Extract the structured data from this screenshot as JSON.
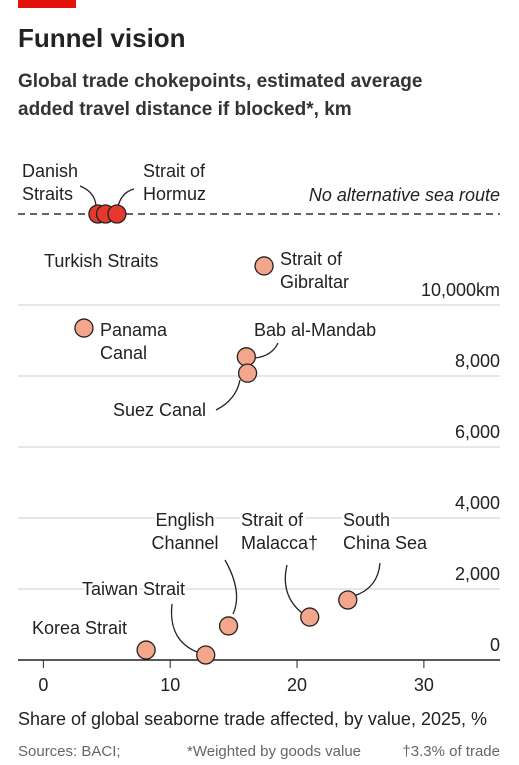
{
  "chart_data": {
    "type": "scatter",
    "title": "Funnel vision",
    "subtitle": [
      "Global trade chokepoints, estimated average",
      "added travel distance if blocked*, km"
    ],
    "xlabel": "Share of global seaborne trade affected, by value, 2025, %",
    "annotation": "No alternative sea route",
    "footnotes": [
      "Sources: BACI;",
      "*Weighted by goods value",
      "†3.3% of trade"
    ],
    "xlim": [
      -2,
      36
    ],
    "xticks": [
      0,
      10,
      20,
      30
    ],
    "ylim": [
      0,
      14000
    ],
    "yticks": [
      0,
      {
        "value": 2000,
        "label": "2,000"
      },
      {
        "value": 4000,
        "label": "4,000"
      },
      {
        "value": 6000,
        "label": "6,000"
      },
      {
        "value": 8000,
        "label": "8,000"
      },
      {
        "value": 10000,
        "label": "10,000km"
      }
    ],
    "grid": true,
    "point_color": "#f4a68c",
    "no_route_color": "#e4392c",
    "points": [
      {
        "label": [
          "Danish",
          "Straits"
        ],
        "x": 4.3,
        "y": null
      },
      {
        "label": [
          "Turkish Straits"
        ],
        "x": 4.9,
        "y": null
      },
      {
        "label": [
          "Strait of",
          "Hormuz"
        ],
        "x": 5.8,
        "y": null
      },
      {
        "label": [
          "Strait of",
          "Gibraltar"
        ],
        "x": 17.4,
        "y": 11100
      },
      {
        "label": [
          "Panama",
          "Canal"
        ],
        "x": 3.2,
        "y": 9350
      },
      {
        "label": [
          "Bab al-Mandab"
        ],
        "x": 16.0,
        "y": 8540
      },
      {
        "label": [
          "Suez Canal"
        ],
        "x": 16.1,
        "y": 8080
      },
      {
        "label": [
          "South",
          "China Sea"
        ],
        "x": 24.0,
        "y": 1690
      },
      {
        "label": [
          "Strait of",
          "Malacca†"
        ],
        "x": 21.0,
        "y": 1210
      },
      {
        "label": [
          "English",
          "Channel"
        ],
        "x": 14.6,
        "y": 960
      },
      {
        "label": [
          "Taiwan Strait"
        ],
        "x": 12.8,
        "y": 140
      },
      {
        "label": [
          "Korea Strait"
        ],
        "x": 8.1,
        "y": 280
      }
    ]
  }
}
